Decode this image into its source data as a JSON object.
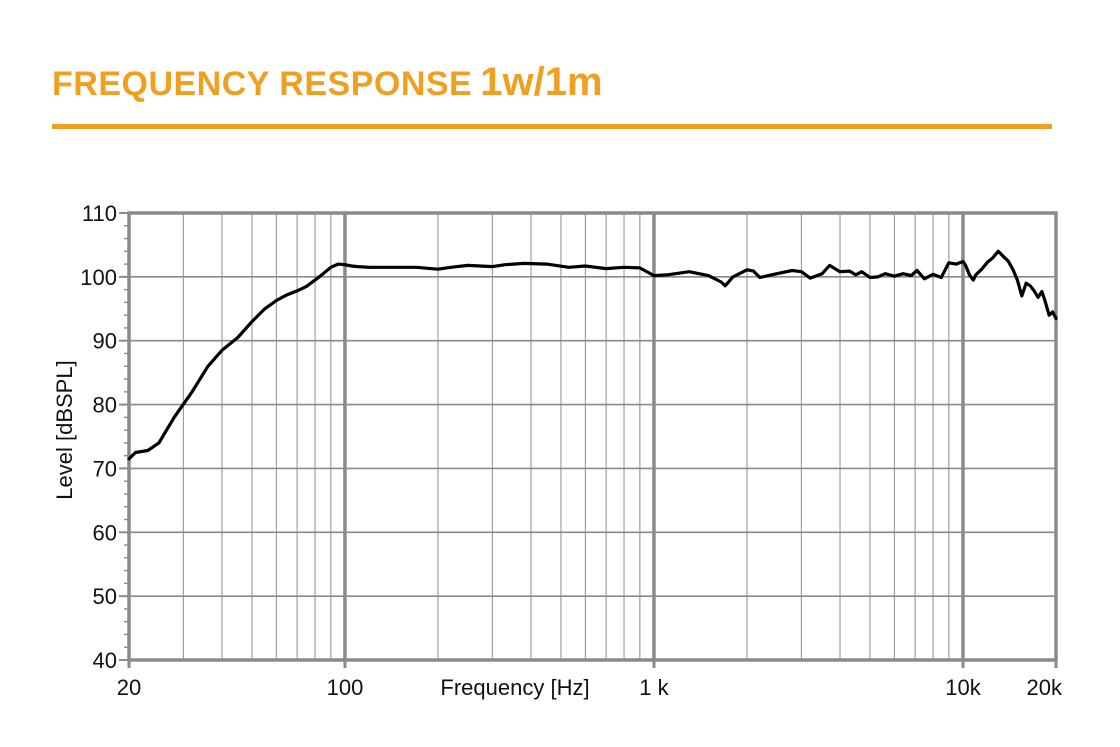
{
  "header": {
    "title": "FREQUENCY RESPONSE",
    "title_suffix": "1w/1m"
  },
  "colors": {
    "accent": "#f0a020",
    "grid_major": "#8a8a8a",
    "grid_minor": "#a0a0a0",
    "curve": "#000000"
  },
  "chart_data": {
    "type": "line",
    "title": "",
    "xlabel": "Frequency [Hz]",
    "ylabel": "Level [dBSPL]",
    "x_scale": "log",
    "xlim": [
      20,
      20000
    ],
    "ylim": [
      40,
      110
    ],
    "grid": true,
    "x_ticks": [
      {
        "value": 20,
        "label": "20"
      },
      {
        "value": 100,
        "label": "100"
      },
      {
        "value": 1000,
        "label": "1 k"
      },
      {
        "value": 10000,
        "label": "10k"
      },
      {
        "value": 20000,
        "label": "20k"
      }
    ],
    "y_ticks": [
      {
        "value": 40,
        "label": "40"
      },
      {
        "value": 50,
        "label": "50"
      },
      {
        "value": 60,
        "label": "60"
      },
      {
        "value": 70,
        "label": "70"
      },
      {
        "value": 80,
        "label": "80"
      },
      {
        "value": 90,
        "label": "90"
      },
      {
        "value": 100,
        "label": "100"
      },
      {
        "value": 110,
        "label": "110"
      }
    ],
    "series": [
      {
        "x": [
          20,
          21,
          23,
          25,
          28,
          32,
          36,
          40,
          45,
          50,
          55,
          60,
          65,
          70,
          75,
          80,
          85,
          90,
          95,
          100,
          105,
          110,
          120,
          140,
          170,
          200,
          220,
          250,
          300,
          330,
          380,
          450,
          530,
          600,
          700,
          800,
          900,
          1000,
          1100,
          1300,
          1500,
          1650,
          1700,
          1800,
          2000,
          2100,
          2200,
          2500,
          2800,
          3000,
          3200,
          3500,
          3700,
          4000,
          4300,
          4500,
          4700,
          5000,
          5300,
          5600,
          6000,
          6400,
          6800,
          7100,
          7500,
          8000,
          8500,
          9000,
          9500,
          10000,
          10200,
          10500,
          10800,
          11000,
          11500,
          12000,
          12500,
          13000,
          13500,
          14000,
          14500,
          15000,
          15500,
          16000,
          16500,
          17000,
          17500,
          18000,
          18500,
          19000,
          19500,
          20000
        ],
        "y": [
          71.5,
          72.5,
          72.8,
          74,
          78,
          82,
          86,
          88.5,
          90.5,
          93,
          95,
          96.3,
          97.2,
          97.8,
          98.5,
          99.5,
          100.5,
          101.5,
          102,
          101.9,
          101.7,
          101.6,
          101.5,
          101.5,
          101.5,
          101.2,
          101.5,
          101.8,
          101.6,
          101.9,
          102.1,
          102.0,
          101.5,
          101.7,
          101.3,
          101.5,
          101.4,
          100.2,
          100.3,
          100.8,
          100.2,
          99.2,
          98.6,
          100,
          101.1,
          100.9,
          99.9,
          100.5,
          101,
          100.8,
          99.8,
          100.5,
          101.8,
          100.8,
          100.9,
          100.3,
          100.8,
          99.9,
          100,
          100.5,
          100.1,
          100.5,
          100.2,
          101,
          99.7,
          100.4,
          99.9,
          102.2,
          102,
          102.4,
          101.8,
          100.3,
          99.5,
          100.3,
          101.2,
          102.3,
          103,
          104,
          103.2,
          102.5,
          101.2,
          99.5,
          97.0,
          99,
          98.6,
          97.8,
          96.8,
          97.7,
          96,
          94,
          94.5,
          93.5
        ]
      }
    ]
  }
}
